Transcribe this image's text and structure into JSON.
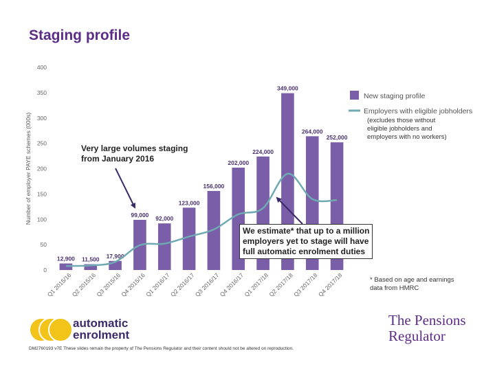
{
  "page": {
    "title": "Staging profile",
    "callout_left": [
      "Very large volumes staging",
      "from January 2016"
    ],
    "callout_box": [
      "We estimate* that up to a million",
      "employers yet to stage will have",
      "full automatic enrolment duties"
    ],
    "line_note": [
      "(excludes those without",
      "eligible jobholders and",
      "employers with no workers)"
    ],
    "footnote": [
      "* Based on age and earnings",
      "data from HMRC"
    ],
    "logo_ae": [
      "automatic",
      "enrolment"
    ],
    "logo_tpr": [
      "The Pensions",
      "Regulator"
    ],
    "footer": "DM2760193 v7E These slides remain the property of The Pensions Regulator and their content should not be altered on reproduction."
  },
  "colors": {
    "bar": "#7b5ea8",
    "line": "#6fa9b2",
    "title": "#5b2d86",
    "logo_yellow": "#f2c318"
  },
  "chart_data": {
    "type": "bar",
    "ylabel": "Number of employer PAYE schemes (000s)",
    "ylim": [
      0,
      400
    ],
    "yticks": [
      0,
      50,
      100,
      150,
      200,
      250,
      300,
      350,
      400
    ],
    "categories": [
      "Q1 2015/16",
      "Q2 2015/16",
      "Q3 2015/16",
      "Q4 2015/16",
      "Q1 2016/17",
      "Q2 2016/17",
      "Q3 2016/17",
      "Q4 2016/17",
      "Q1 2017/18",
      "Q2 2017/18",
      "Q3 2017/18",
      "Q4 2017/18"
    ],
    "series": [
      {
        "name": "New staging profile",
        "kind": "bar",
        "values": [
          12.9,
          11.5,
          17.9,
          99,
          92,
          123,
          156,
          202,
          224,
          349,
          264,
          252
        ],
        "labels": [
          "12,900",
          "11,500",
          "17,900",
          "99,000",
          "92,000",
          "123,000",
          "156,000",
          "202,000",
          "224,000",
          "349,000",
          "264,000",
          "252,000"
        ]
      },
      {
        "name": "Employers with eligible jobholders",
        "kind": "line",
        "values": [
          8,
          9,
          16,
          49,
          52,
          66,
          80,
          110,
          122,
          190,
          140,
          138
        ]
      }
    ],
    "legend": "top-right",
    "grid": false
  }
}
